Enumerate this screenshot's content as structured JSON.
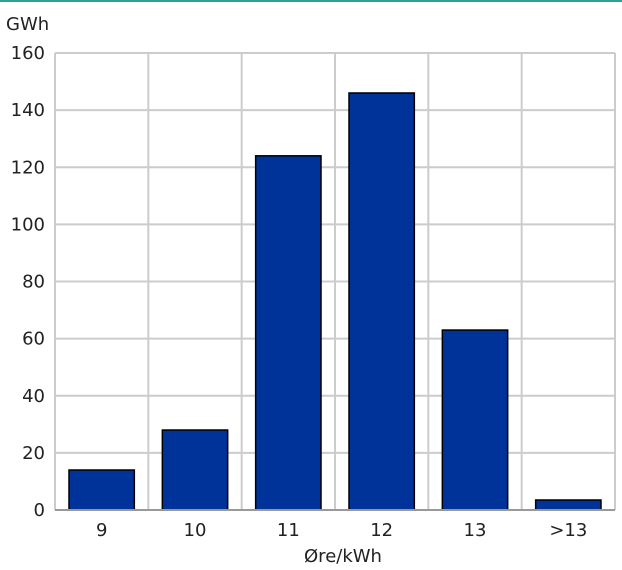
{
  "chart_data": {
    "type": "bar",
    "categories": [
      "9",
      "10",
      "11",
      "12",
      "13",
      ">13"
    ],
    "values": [
      14,
      28,
      124,
      146,
      63,
      3.5
    ],
    "xlabel": "Øre/kWh",
    "ylabel": "GWh",
    "ylim": [
      0,
      160
    ],
    "yticks": [
      "0",
      "20",
      "40",
      "60",
      "80",
      "100",
      "120",
      "140",
      "160"
    ],
    "grid": true,
    "colors": {
      "bar_fill": "#003399",
      "bar_stroke": "#000000",
      "grid": "#cccccc",
      "top_rule": "#2aa198"
    }
  }
}
